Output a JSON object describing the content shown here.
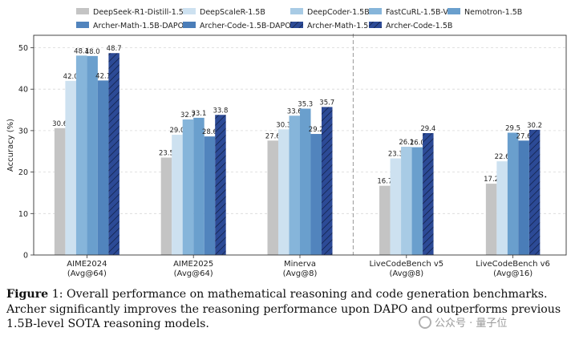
{
  "chart_data": {
    "type": "bar",
    "ylabel": "Accuracy (%)",
    "ylim": [
      0,
      53
    ],
    "yticks": [
      0,
      10,
      20,
      30,
      40,
      50
    ],
    "grid": "horizontal-dashed",
    "legend_position": "top",
    "separator_after_category": 2,
    "categories": [
      {
        "line1": "AIME2024",
        "line2": "(Avg@64)"
      },
      {
        "line1": "AIME2025",
        "line2": "(Avg@64)"
      },
      {
        "line1": "Minerva",
        "line2": "(Avg@8)"
      },
      {
        "line1": "LiveCodeBench v5",
        "line2": "(Avg@8)"
      },
      {
        "line1": "LiveCodeBench v6",
        "line2": "(Avg@16)"
      }
    ],
    "series": [
      {
        "name": "DeepSeek-R1-Distill-1.5B",
        "color": "#c4c4c4",
        "hatch": false,
        "values": [
          30.6,
          23.5,
          27.6,
          16.7,
          17.2
        ]
      },
      {
        "name": "DeepScaleR-1.5B",
        "color": "#cde1f0",
        "hatch": false,
        "values": [
          42.0,
          29.0,
          30.3,
          23.3,
          22.6
        ]
      },
      {
        "name": "DeepCoder-1.5B",
        "color": "#a8cbe5",
        "hatch": false,
        "values": [
          null,
          null,
          null,
          26.1,
          null
        ]
      },
      {
        "name": "FastCuRL-1.5B-V3",
        "color": "#86b5da",
        "hatch": false,
        "values": [
          48.1,
          32.7,
          33.6,
          null,
          null
        ]
      },
      {
        "name": "Nemotron-1.5B",
        "color": "#6a9fcd",
        "hatch": false,
        "values": [
          48.0,
          33.1,
          35.3,
          26.0,
          29.5
        ]
      },
      {
        "name": "Archer-Math-1.5B-DAPO",
        "color": "#5184bd",
        "hatch": false,
        "values": [
          42.1,
          28.6,
          29.2,
          null,
          null
        ]
      },
      {
        "name": "Archer-Code-1.5B-DAPO",
        "color": "#4a7db8",
        "hatch": false,
        "values": [
          null,
          null,
          null,
          null,
          27.6
        ]
      },
      {
        "name": "Archer-Math-1.5B",
        "color": "#2c4a96",
        "hatch": true,
        "values": [
          48.7,
          33.8,
          35.7,
          null,
          null
        ]
      },
      {
        "name": "Archer-Code-1.5B",
        "color": "#2c4a96",
        "hatch": true,
        "values": [
          null,
          null,
          null,
          29.4,
          30.2
        ]
      }
    ]
  },
  "caption": {
    "figure_label": "Figure",
    "text": " 1: Overall performance on mathematical reasoning and code generation benchmarks. Archer significantly improves the reasoning performance upon DAPO and outperforms previous 1.5B-level SOTA reasoning models."
  },
  "watermark": {
    "text": "公众号 · 量子位"
  }
}
